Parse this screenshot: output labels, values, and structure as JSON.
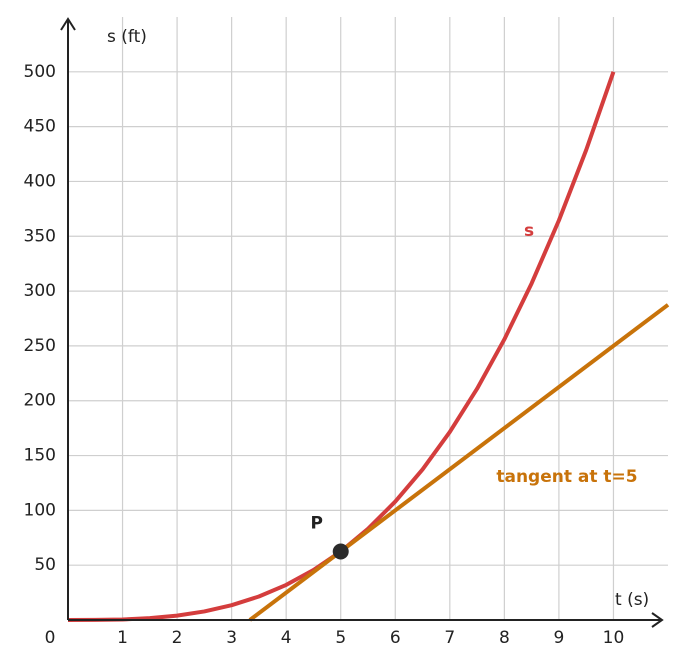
{
  "chart_data": {
    "type": "line",
    "x_label": "t (s)",
    "y_label": "s (ft)",
    "xlim": [
      0,
      11
    ],
    "ylim": [
      0,
      550
    ],
    "xticks": [
      0,
      1,
      2,
      3,
      4,
      5,
      6,
      7,
      8,
      9,
      10
    ],
    "yticks": [
      50,
      100,
      150,
      200,
      250,
      300,
      350,
      400,
      450,
      500
    ],
    "grid": true,
    "series": [
      {
        "name": "s",
        "color": "#d43d3d",
        "x": [
          0,
          0.5,
          1,
          1.5,
          2,
          2.5,
          3,
          3.5,
          4,
          4.5,
          5,
          5.5,
          6,
          6.5,
          7,
          7.5,
          8,
          8.5,
          9,
          9.5,
          10
        ],
        "values": [
          0,
          0.0625,
          0.5,
          1.6875,
          4,
          7.8125,
          13.5,
          21.4375,
          32,
          45.5625,
          62.5,
          83.1875,
          108,
          137.3125,
          171.5,
          210.9375,
          256,
          307.0625,
          364.5,
          428.6875,
          500
        ]
      },
      {
        "name": "tangent at t=5",
        "color": "#c8730a",
        "x": [
          3.3333,
          11
        ],
        "values": [
          0,
          287.5
        ]
      }
    ],
    "points": [
      {
        "label": "P",
        "x": 5,
        "y": 62.5,
        "color": "#2b2b2b"
      }
    ]
  }
}
